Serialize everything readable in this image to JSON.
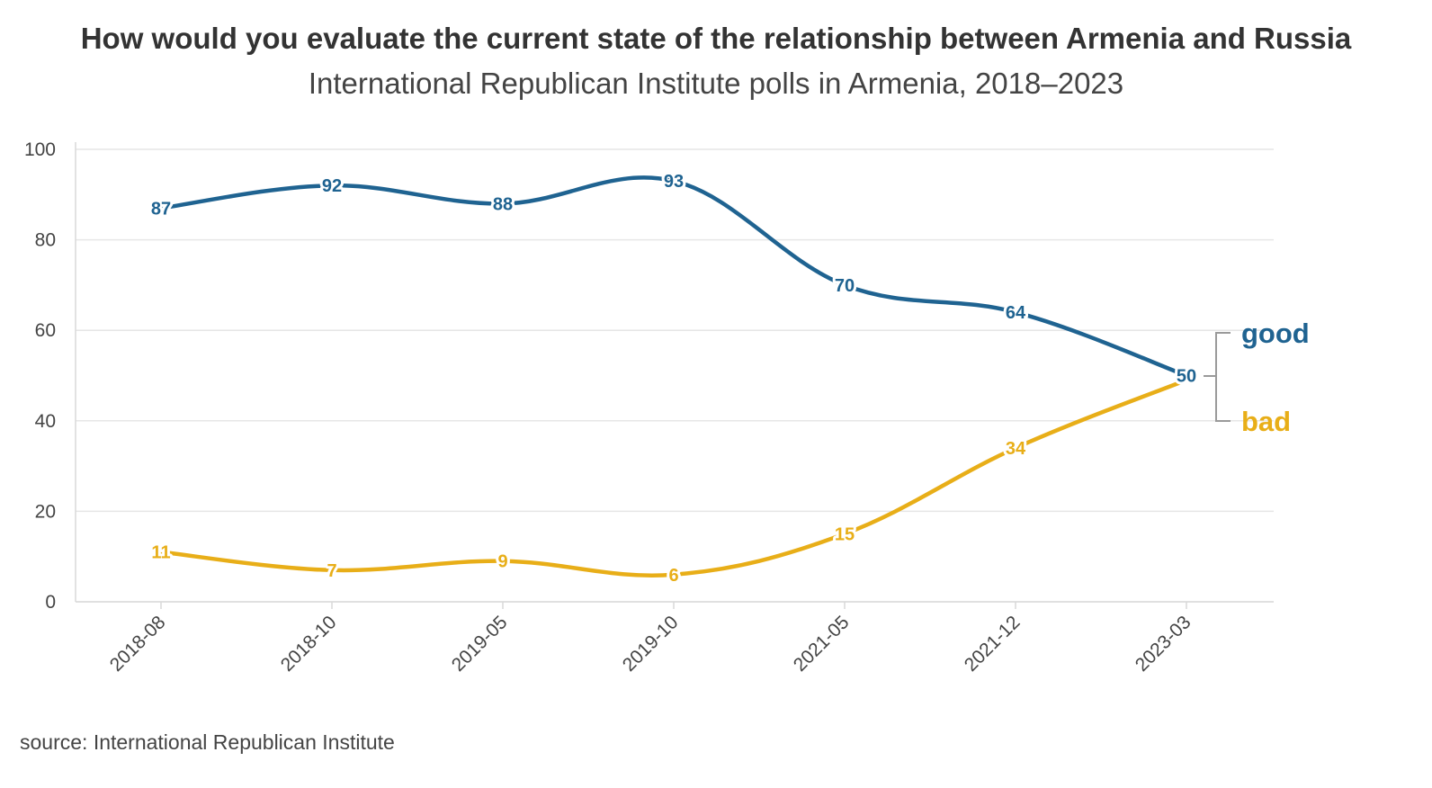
{
  "title": "How would you evaluate the current state of the relationship between Armenia and Russia",
  "subtitle": "International Republican Institute polls in Armenia, 2018–2023",
  "source": "source: International Republican Institute",
  "colors": {
    "good": "#1f6391",
    "bad": "#e8ae18",
    "grid": "#e6e6e6",
    "axis": "#d9d9d9",
    "bracket": "#9a9a9a"
  },
  "chart_data": {
    "type": "line",
    "categories": [
      "2018-08",
      "2018-10",
      "2019-05",
      "2019-10",
      "2021-05",
      "2021-12",
      "2023-03"
    ],
    "series": [
      {
        "name": "good",
        "color": "#1f6391",
        "values": [
          87,
          92,
          88,
          93,
          70,
          64,
          50
        ]
      },
      {
        "name": "bad",
        "color": "#e8ae18",
        "values": [
          11,
          7,
          9,
          6,
          15,
          34,
          49
        ]
      }
    ],
    "data_labels": {
      "good": [
        "87",
        "92",
        "88",
        "93",
        "70",
        "64",
        "50"
      ],
      "bad": [
        "11",
        "7",
        "9",
        "6",
        "15",
        "34",
        ""
      ]
    },
    "yticks": [
      "0",
      "20",
      "40",
      "60",
      "80",
      "100"
    ],
    "ylim": [
      0,
      100
    ],
    "grid": true,
    "legend": "right, direct labels with bracket"
  }
}
